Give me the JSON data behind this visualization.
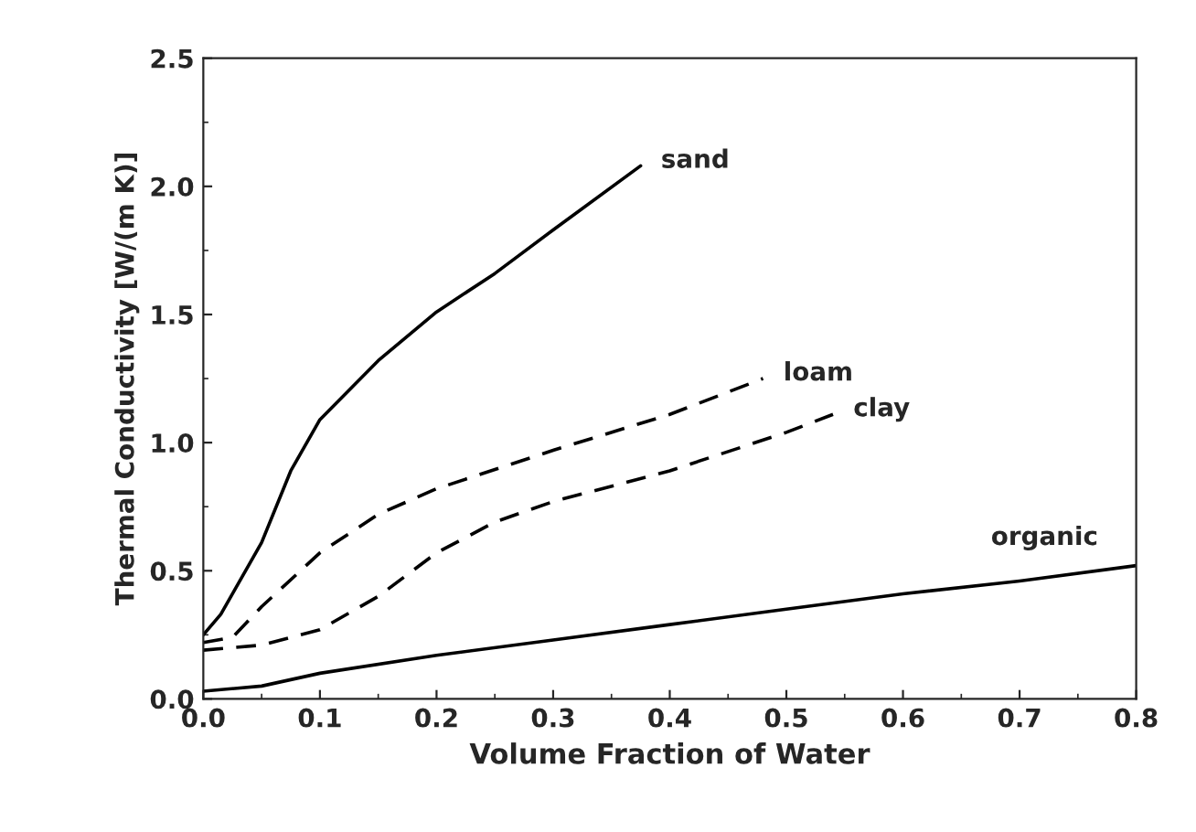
{
  "chart_data": {
    "type": "line",
    "xlabel": "Volume Fraction of Water",
    "ylabel": "Thermal Conductivity [W/(m K)]",
    "xlim": [
      0,
      0.8
    ],
    "ylim": [
      0,
      2.5
    ],
    "xticks": [
      {
        "value": 0,
        "label": "0.0"
      },
      0.1,
      0.2,
      0.3,
      0.4,
      0.5,
      0.6,
      0.7,
      0.8
    ],
    "yticks": [
      {
        "value": 0,
        "label": "0.0"
      },
      0.5,
      {
        "value": 1,
        "label": "1.0"
      },
      1.5,
      {
        "value": 2,
        "label": "2.0"
      },
      2.5
    ],
    "grid": false,
    "legend": false,
    "series": [
      {
        "name": "sand",
        "color": "#000000",
        "line_style": "solid",
        "x": [
          0,
          0.015,
          0.05,
          0.075,
          0.1,
          0.15,
          0.2,
          0.25,
          0.3,
          0.375
        ],
        "values": [
          0.25,
          0.33,
          0.61,
          0.89,
          1.09,
          1.32,
          1.51,
          1.66,
          1.83,
          2.08
        ]
      },
      {
        "name": "loam",
        "color": "#000000",
        "line_style": "dashed",
        "x": [
          0,
          0.025,
          0.05,
          0.1,
          0.15,
          0.2,
          0.3,
          0.4,
          0.48
        ],
        "values": [
          0.22,
          0.24,
          0.36,
          0.57,
          0.72,
          0.82,
          0.97,
          1.11,
          1.25
        ]
      },
      {
        "name": "clay",
        "color": "#000000",
        "line_style": "dashed",
        "x": [
          0,
          0.05,
          0.1,
          0.15,
          0.2,
          0.25,
          0.3,
          0.4,
          0.5,
          0.54
        ],
        "values": [
          0.19,
          0.21,
          0.27,
          0.4,
          0.57,
          0.69,
          0.77,
          0.89,
          1.04,
          1.11
        ]
      },
      {
        "name": "organic",
        "color": "#000000",
        "line_style": "solid",
        "x": [
          0,
          0.05,
          0.1,
          0.2,
          0.3,
          0.4,
          0.5,
          0.6,
          0.7,
          0.8
        ],
        "values": [
          0.03,
          0.05,
          0.1,
          0.17,
          0.23,
          0.29,
          0.35,
          0.41,
          0.46,
          0.52
        ]
      }
    ]
  }
}
